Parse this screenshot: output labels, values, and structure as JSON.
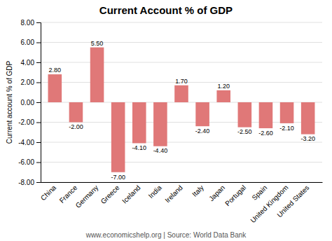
{
  "chart_data": {
    "type": "bar",
    "title": "Current Account % of GDP",
    "ylabel": "Current account % of GDP",
    "footer": "www.economicshelp.org | Source: World Data Bank",
    "categories": [
      "China",
      "France",
      "Germany",
      "Greece",
      "Iceland",
      "India",
      "Ireland",
      "Italy",
      "Japan",
      "Portugal",
      "Spain",
      "United Kingdom",
      "United States"
    ],
    "values": [
      2.8,
      -2.0,
      5.5,
      -7.0,
      -4.1,
      -4.4,
      1.7,
      -2.4,
      1.2,
      -2.5,
      -2.6,
      -2.1,
      -3.2
    ],
    "value_labels": [
      "2.80",
      "-2.00",
      "5.50",
      "-7.00",
      "-4.10",
      "-4.40",
      "1.70",
      "-2.40",
      "1.20",
      "-2.50",
      "-2.60",
      "-2.10",
      "-3.20"
    ],
    "data_labels": true,
    "color": "#e07878",
    "ylim": [
      -8.0,
      8.0
    ],
    "yticks": [
      {
        "value": -8.0,
        "label": "-8.00"
      },
      {
        "value": -6.0,
        "label": "-6.00"
      },
      {
        "value": -4.0,
        "label": "-4.00"
      },
      {
        "value": -2.0,
        "label": "-2.00"
      },
      {
        "value": 0.0,
        "label": "0.00"
      },
      {
        "value": 2.0,
        "label": "2.00"
      },
      {
        "value": 4.0,
        "label": "4.00"
      },
      {
        "value": 6.0,
        "label": "6.00"
      },
      {
        "value": 8.0,
        "label": "8.00"
      }
    ],
    "grid": true
  }
}
